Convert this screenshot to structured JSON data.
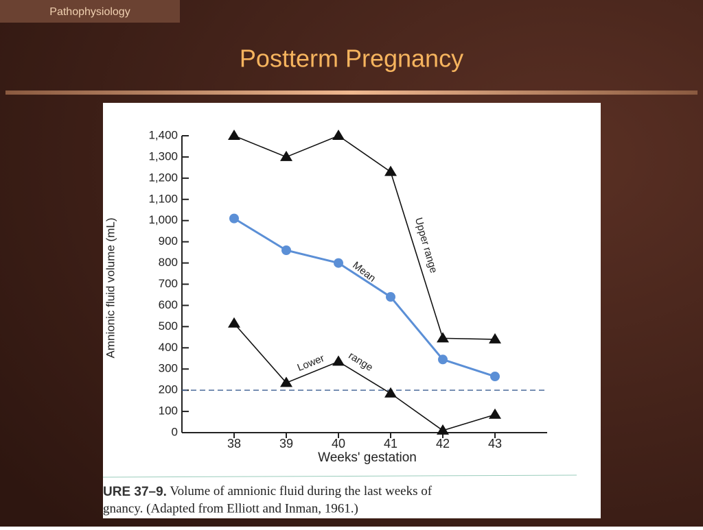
{
  "slide": {
    "section": "Pathophysiology",
    "title": "Postterm Pregnancy"
  },
  "chart_data": {
    "type": "line",
    "ylabel": "Amnionic fluid volume (mL)",
    "xlabel": "Weeks' gestation",
    "x": [
      38,
      39,
      40,
      41,
      42,
      43
    ],
    "xlim": [
      37,
      44
    ],
    "xticks": [
      38,
      39,
      40,
      41,
      42,
      43
    ],
    "ylim": [
      0,
      1400
    ],
    "yticks": [
      0,
      100,
      200,
      300,
      400,
      500,
      600,
      700,
      800,
      900,
      {
        "value": 1000,
        "label": "1,000"
      },
      {
        "value": 1100,
        "label": "1,100"
      },
      {
        "value": 1200,
        "label": "1,200"
      },
      {
        "value": 1300,
        "label": "1,300"
      },
      {
        "value": 1400,
        "label": "1,400"
      }
    ],
    "series": [
      {
        "color": "#111111",
        "marker": "triangle",
        "values": [
          1400,
          1300,
          1400,
          1230,
          445,
          440
        ]
      },
      {
        "color": "#5b8fd6",
        "marker": "circle",
        "values": [
          1010,
          860,
          800,
          640,
          345,
          265
        ]
      },
      {
        "color": "#111111",
        "marker": "triangle",
        "values": [
          515,
          235,
          335,
          185,
          10,
          85
        ]
      }
    ],
    "reference_line": {
      "value": 200,
      "color": "#4a6a9a"
    },
    "annotations": [
      "Upper range",
      "Mean",
      "Lower",
      "range"
    ],
    "caption": {
      "label": "URE 37–9.",
      "line1": "Volume of amnionic fluid during the last weeks of",
      "line2": "gnancy. (Adapted from Elliott and Inman, 1961.)"
    }
  }
}
